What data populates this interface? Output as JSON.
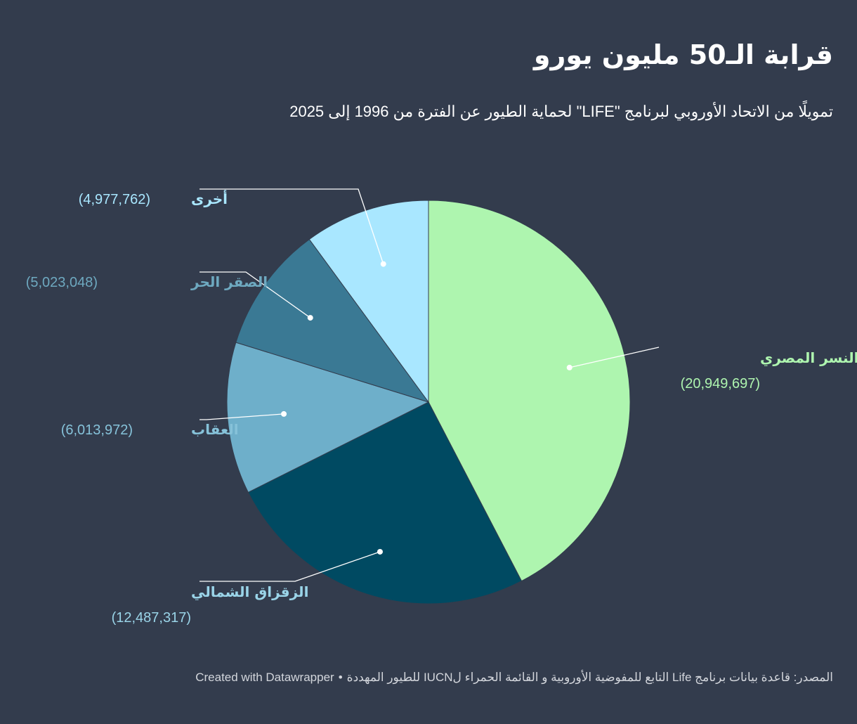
{
  "title": "قرابة الـ50 مليون يورو",
  "subtitle": "تمويلًا من الاتحاد الأوروبي لبرنامج \"LIFE\" لحماية الطيور عن الفترة من 1996 إلى 2025",
  "footer": {
    "source": "المصدر: قاعدة بيانات برنامج Life التابع للمفوضية الأوروبية و القائمة الحمراء لIUCN للطيور المهددة",
    "separator": "•",
    "credit": "Created with Datawrapper"
  },
  "chart_data": {
    "type": "pie",
    "slices": [
      {
        "label": "النسر المصري",
        "value": 20949697,
        "value_text": "20,949,697",
        "color": "#aef5af",
        "label_color": "#aef5af"
      },
      {
        "label": "الزقزاق الشمالي",
        "value": 12487317,
        "value_text": "12,487,317",
        "color": "#004a62",
        "label_color": "#9ad4e8"
      },
      {
        "label": "العقاب",
        "value": 6013972,
        "value_text": "6,013,972",
        "color": "#6eafca",
        "label_color": "#86c2d9"
      },
      {
        "label": "الصقر الحر",
        "value": 5023048,
        "value_text": "5,023,048",
        "color": "#3a7994",
        "label_color": "#6ea9c0"
      },
      {
        "label": "أخرى",
        "value": 4977762,
        "value_text": "4,977,762",
        "color": "#a9e7ff",
        "label_color": "#a9e7ff"
      }
    ]
  }
}
